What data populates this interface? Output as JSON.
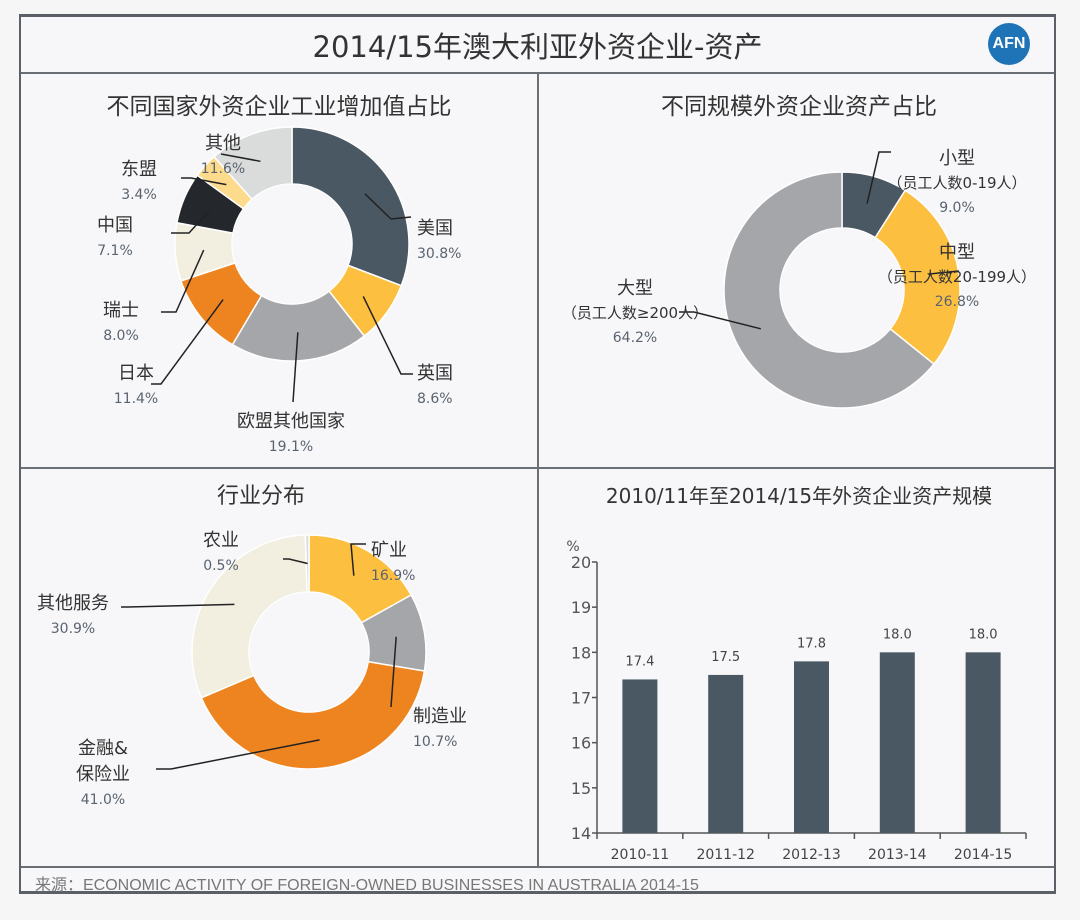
{
  "header": {
    "title": "2014/15年澳大利亚外资企业-资产",
    "logo_text": "AFN",
    "logo_color": "#1f73b7"
  },
  "footer": {
    "source": "来源：ECONOMIC ACTIVITY OF FOREIGN-OWNED BUSINESSES IN AUSTRALIA 2014-15"
  },
  "chart_data": [
    {
      "id": "by-country",
      "type": "pie",
      "donut": true,
      "title": "不同国家外资企业工业增加值占比",
      "unit": "%",
      "slices": [
        {
          "label": "美国",
          "value": 30.8,
          "display": "30.8%",
          "color": "#4a5863"
        },
        {
          "label": "英国",
          "value": 8.6,
          "display": "8.6%",
          "color": "#fcbf3f"
        },
        {
          "label": "欧盟其他国家",
          "value": 19.1,
          "display": "19.1%",
          "color": "#a5a6aa"
        },
        {
          "label": "日本",
          "value": 11.4,
          "display": "11.4%",
          "color": "#ee8420"
        },
        {
          "label": "瑞士",
          "value": 8.0,
          "display": "8.0%",
          "color": "#f2eee0"
        },
        {
          "label": "中国",
          "value": 7.1,
          "display": "7.1%",
          "color": "#24282d"
        },
        {
          "label": "东盟",
          "value": 3.4,
          "display": "3.4%",
          "color": "#fddb8c"
        },
        {
          "label": "其他",
          "value": 11.6,
          "display": "11.6%",
          "color": "#dadcdb"
        }
      ]
    },
    {
      "id": "by-size",
      "type": "pie",
      "donut": true,
      "title": "不同规模外资企业资产占比",
      "unit": "%",
      "slices": [
        {
          "label": "小型",
          "sublabel": "（员工人数0-19人）",
          "value": 9.0,
          "display": "9.0%",
          "color": "#4a5863"
        },
        {
          "label": "中型",
          "sublabel": "（员工人数20-199人）",
          "value": 26.8,
          "display": "26.8%",
          "color": "#fcbf3f"
        },
        {
          "label": "大型",
          "sublabel": "（员工人数≥200人）",
          "value": 64.2,
          "display": "64.2%",
          "color": "#a5a6aa"
        }
      ]
    },
    {
      "id": "by-industry",
      "type": "pie",
      "donut": true,
      "title": "行业分布",
      "unit": "%",
      "slices": [
        {
          "label": "矿业",
          "value": 16.9,
          "display": "16.9%",
          "color": "#fcbf3f"
        },
        {
          "label": "制造业",
          "value": 10.7,
          "display": "10.7%",
          "color": "#a5a6aa"
        },
        {
          "label": "金融&\n保险业",
          "value": 41.0,
          "display": "41.0%",
          "color": "#ee8420"
        },
        {
          "label": "其他服务",
          "value": 30.9,
          "display": "30.9%",
          "color": "#f2eee0"
        },
        {
          "label": "农业",
          "value": 0.5,
          "display": "0.5%",
          "color": "#dadcdb"
        }
      ]
    },
    {
      "id": "asset-scale",
      "type": "bar",
      "title": "2010/11年至2014/15年外资企业资产规模",
      "ylabel": "%",
      "xlabel": "",
      "categories": [
        "2010-11",
        "2011-12",
        "2012-13",
        "2013-14",
        "2014-15"
      ],
      "values": [
        17.4,
        17.5,
        17.8,
        18.0,
        18.0
      ],
      "value_labels": [
        "17.4",
        "17.5",
        "17.8",
        "18.0",
        "18.0"
      ],
      "ylim": [
        14,
        20
      ],
      "yticks": [
        14,
        15,
        16,
        17,
        18,
        19,
        20
      ],
      "grid": false,
      "bar_color": "#4a5863"
    }
  ]
}
